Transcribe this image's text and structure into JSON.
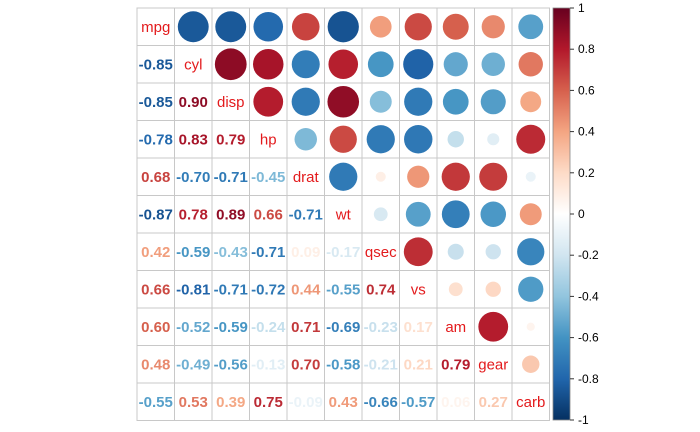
{
  "chart_data": {
    "type": "heatmap",
    "title": "",
    "variables": [
      "mpg",
      "cyl",
      "disp",
      "hp",
      "drat",
      "wt",
      "qsec",
      "vs",
      "am",
      "gear",
      "carb"
    ],
    "matrix": [
      [
        1.0,
        -0.85,
        -0.85,
        -0.78,
        0.68,
        -0.87,
        0.42,
        0.66,
        0.6,
        0.48,
        -0.55
      ],
      [
        -0.85,
        1.0,
        0.9,
        0.83,
        -0.7,
        0.78,
        -0.59,
        -0.81,
        -0.52,
        -0.49,
        0.53
      ],
      [
        -0.85,
        0.9,
        1.0,
        0.79,
        -0.71,
        0.89,
        -0.43,
        -0.71,
        -0.59,
        -0.56,
        0.39
      ],
      [
        -0.78,
        0.83,
        0.79,
        1.0,
        -0.45,
        0.66,
        -0.71,
        -0.72,
        -0.24,
        -0.13,
        0.75
      ],
      [
        0.68,
        -0.7,
        -0.71,
        -0.45,
        1.0,
        -0.71,
        0.09,
        0.44,
        0.71,
        0.7,
        -0.09
      ],
      [
        -0.87,
        0.78,
        0.89,
        0.66,
        -0.71,
        1.0,
        -0.17,
        -0.55,
        -0.69,
        -0.58,
        0.43
      ],
      [
        0.42,
        -0.59,
        -0.43,
        -0.71,
        0.09,
        -0.17,
        1.0,
        0.74,
        -0.23,
        -0.21,
        -0.66
      ],
      [
        0.66,
        -0.81,
        -0.71,
        -0.72,
        0.44,
        -0.55,
        0.74,
        1.0,
        0.17,
        0.21,
        -0.57
      ],
      [
        0.6,
        -0.52,
        -0.59,
        -0.24,
        0.71,
        -0.69,
        -0.23,
        0.17,
        1.0,
        0.79,
        0.06
      ],
      [
        0.48,
        -0.49,
        -0.56,
        -0.13,
        0.7,
        -0.58,
        -0.21,
        0.21,
        0.79,
        1.0,
        0.27
      ],
      [
        -0.55,
        0.53,
        0.39,
        0.75,
        -0.09,
        0.43,
        -0.66,
        -0.57,
        0.06,
        0.27,
        1.0
      ]
    ],
    "upper_method": "circle",
    "lower_method": "number",
    "diagonal_label_color": "#e31a1c",
    "colorbar": {
      "ticks": [
        "1",
        "0.8",
        "0.6",
        "0.4",
        "0.2",
        "0",
        "-0.2",
        "-0.4",
        "-0.6",
        "-0.8",
        "-1"
      ],
      "range": [
        -1,
        1
      ],
      "colors": [
        "#67001f",
        "#b2182b",
        "#d6604d",
        "#f4a582",
        "#fddbc7",
        "#ffffff",
        "#d1e5f0",
        "#92c5de",
        "#4393c3",
        "#2166ac",
        "#053061"
      ]
    },
    "grid": true
  }
}
